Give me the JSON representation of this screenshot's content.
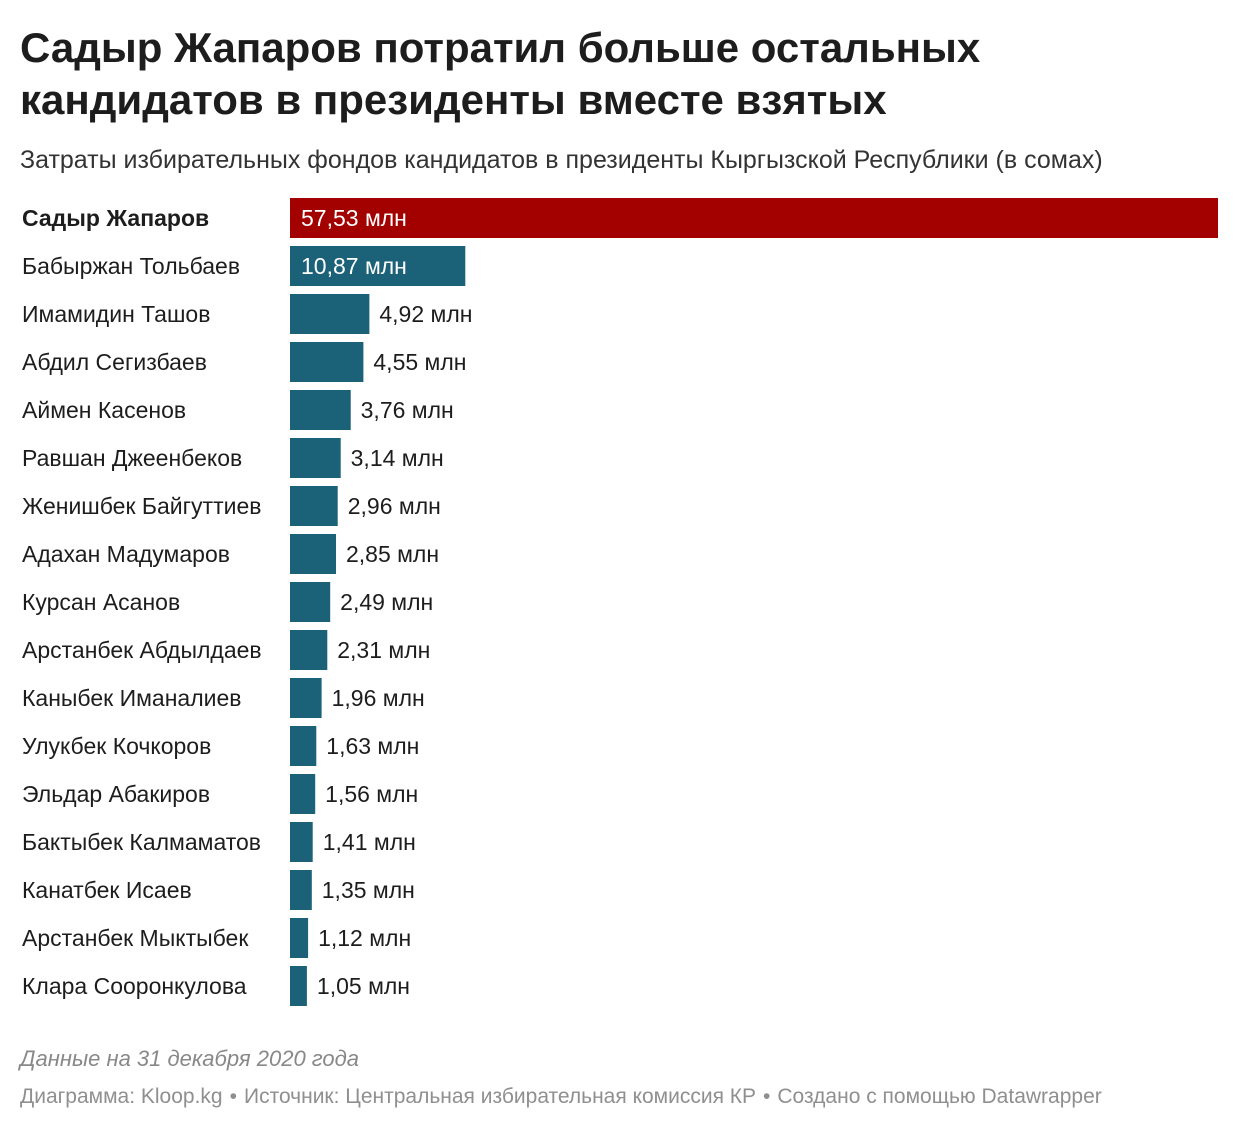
{
  "header": {
    "title": "Садыр Жапаров потратил больше остальных кандидатов в президенты вместе взятых",
    "subtitle": "Затраты избирательных фондов кандидатов в президенты Кыргызской Республики (в сомах)"
  },
  "chart_data": {
    "type": "bar",
    "orientation": "horizontal",
    "title": "Садыр Жапаров потратил больше остальных кандидатов в президенты вместе взятых",
    "subtitle": "Затраты избирательных фондов кандидатов в президенты Кыргызской Республики (в сомах)",
    "unit": "млн",
    "xlim": [
      0,
      57.53
    ],
    "grid": false,
    "legend": "none",
    "colors": {
      "highlight": "#a30000",
      "default": "#1b6178"
    },
    "categories": [
      "Садыр Жапаров",
      "Бабыржан Тольбаев",
      "Имамидин Ташов",
      "Абдил Сегизбаев",
      "Аймен Касенов",
      "Равшан Джеенбеков",
      "Женишбек Байгуттиев",
      "Адахан Мадумаров",
      "Курсан Асанов",
      "Арстанбек Абдылдаев",
      "Каныбек Иманалиев",
      "Улукбек Кочкоров",
      "Эльдар Абакиров",
      "Бактыбек Калмаматов",
      "Канатбек Исаев",
      "Арстанбек Мыктыбек",
      "Клара Сооронкулова"
    ],
    "values": [
      57.53,
      10.87,
      4.92,
      4.55,
      3.76,
      3.14,
      2.96,
      2.85,
      2.49,
      2.31,
      1.96,
      1.63,
      1.56,
      1.41,
      1.35,
      1.12,
      1.05
    ],
    "labels": [
      "57,53 млн",
      "10,87 млн",
      "4,92 млн",
      "4,55 млн",
      "3,76 млн",
      "3,14 млн",
      "2,96 млн",
      "2,85 млн",
      "2,49 млн",
      "2,31 млн",
      "1,96 млн",
      "1,63 млн",
      "1,56 млн",
      "1,41 млн",
      "1,35 млн",
      "1,12 млн",
      "1,05 млн"
    ],
    "highlighted": [
      "Садыр Жапаров"
    ]
  },
  "notes": {
    "date_note": "Данные на 31 декабря 2020 года",
    "credit": "Диаграмма: Kloop.kg",
    "source": "Источник: Центральная избирательная комиссия КР",
    "made_with": "Создано с помощью Datawrapper",
    "separator": "•"
  }
}
